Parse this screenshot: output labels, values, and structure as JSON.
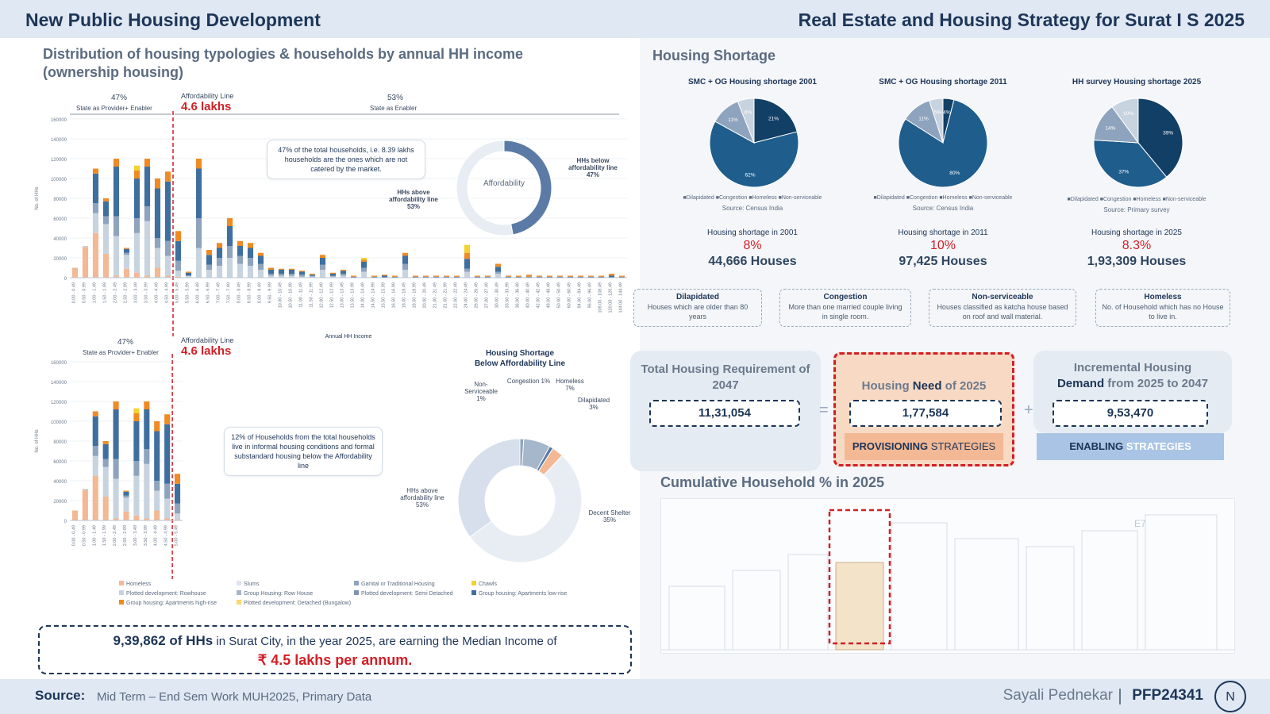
{
  "header": {
    "left_title": "New Public Housing Development",
    "right_title": "Real Estate and Housing Strategy for Surat I S 2025"
  },
  "left": {
    "title_line1": "Distribution of housing typologies & households by annual HH income",
    "title_line2": "(ownership housing)",
    "top_chart": {
      "pct_left": "47%",
      "left_caption": "State as Provider+ Enabler",
      "aff_line_label": "Affordability Line",
      "aff_line_value": "4.6 lakhs",
      "pct_right": "53%",
      "right_caption": "State as Enabler",
      "xlabel": "Annual HH Income",
      "ylabel": "No. of HHs",
      "callout": "47% of the total households, i.e. 8.39 lakhs households are the ones which are not catered by the market.",
      "donut_center": "Affordability",
      "donut_below": "HHs below affordability line 47%",
      "donut_above": "HHs above affordability line 53%"
    },
    "bottom_chart": {
      "pct_left": "47%",
      "left_caption": "State as Provider+ Enabler",
      "aff_line_label": "Affordability Line",
      "aff_line_value": "4.6 lakhs",
      "ylabel": "No. of HHs",
      "callout": "12% of Households from the total households live in informal housing conditions and formal substandard housing below the Affordability line",
      "donut_title_1": "Housing Shortage",
      "donut_title_2": "Below Affordability Line",
      "labels": {
        "congestion": "Congestion 1%",
        "homeless": "Homeless 7%",
        "nonserv": "Non-Serviceable 1%",
        "dilapidated": "Dilapidated 3%",
        "above": "HHs above affordability line 53%",
        "decent": "Decent Shelter 35%"
      }
    },
    "legend": [
      "Homeless",
      "Slums",
      "Gamtal or Traditional Housing",
      "Chawls",
      "Plotted development: Rowhouse",
      "Group Housing: Row House",
      "Plotted development: Semi Detached",
      "Group housing: Apartments low-rise",
      "Group housing: Apartments high-rise",
      "Plotted development: Detached (Bungalow)"
    ],
    "median": {
      "count": "9,39,862 of HHs",
      "text": " in Surat City, in the year 2025, are earning the Median Income of",
      "value": "₹ 4.5 lakhs per annum."
    }
  },
  "right": {
    "shortage_title": "Housing Shortage",
    "pies": [
      {
        "title": "SMC + OG Housing shortage 2001",
        "source": "Source: Census India",
        "label": "Housing shortage in 2001",
        "pct": "8%",
        "houses": "44,666 Houses"
      },
      {
        "title": "SMC + OG Housing shortage 2011",
        "source": "Source: Census India",
        "label": "Housing shortage in 2011",
        "pct": "10%",
        "houses": "97,425 Houses"
      },
      {
        "title": "HH survey Housing shortage 2025",
        "source": "Source: Primary survey",
        "label": "Housing shortage in 2025",
        "pct": "8.3%",
        "houses": "1,93,309 Houses"
      }
    ],
    "pie_legend": "■Dilapidated ■Congestion ■Homeless ■Non-serviceable",
    "definitions": [
      {
        "head": "Dilapidated",
        "text": "Houses which are older than 80 years"
      },
      {
        "head": "Congestion",
        "text": "More than one married couple living in single room."
      },
      {
        "head": "Non-serviceable",
        "text": "Houses classified as katcha house based on roof and wall material."
      },
      {
        "head": "Homeless",
        "text": "No. of Household which has no House to live in."
      }
    ],
    "equation": {
      "total_title": "Total Housing Requirement of 2047",
      "total_value": "11,31,054",
      "eq": "=",
      "need_title_a": "Housing ",
      "need_title_b": "Need",
      "need_title_c": " of 2025",
      "need_value": "1,77,584",
      "need_strategy_a": "PROVISIONING",
      "need_strategy_b": " STRATEGIES",
      "plus": "+",
      "inc_title_1": "Incremental Housing",
      "inc_title_2a": "Demand",
      "inc_title_2b": " from 2025 to 2047",
      "inc_value": "9,53,470",
      "inc_strategy_a": "ENABLING",
      "inc_strategy_b": " STRATEGIES"
    },
    "cumulative_title": "Cumulative Household % in 2025",
    "cumulative_tag": "E7"
  },
  "footer": {
    "source_label": "Source:",
    "source_text": "Mid Term – End Sem Work MUH2025, Primary Data",
    "author": "Sayali Pednekar",
    "code": "PFP24341",
    "logo": "N"
  },
  "colors": {
    "navy": "#1d3557",
    "red": "#d21f26",
    "dark_blue": "#123f66",
    "mid_blue": "#3f6f9f",
    "grey_blue": "#8ea3bd",
    "light_grey": "#c8d3e0",
    "orange": "#f08a24",
    "peach": "#f3b894",
    "yellow": "#f2d22e"
  },
  "chart_data": [
    {
      "type": "bar",
      "title": "Distribution of housing typologies & households by annual HH income (ownership housing)",
      "xlabel": "Annual HH Income",
      "ylabel": "No. of HHs",
      "ylim": [
        0,
        160000
      ],
      "yticks": [
        0,
        20000,
        40000,
        60000,
        80000,
        100000,
        120000,
        140000,
        160000
      ],
      "categories": [
        "0.00 - 0.49",
        "0.50 - 0.99",
        "1.00 - 1.49",
        "1.50 - 1.99",
        "2.00 - 2.49",
        "2.50 - 2.99",
        "3.00 - 3.49",
        "3.50 - 3.99",
        "4.00 - 4.49",
        "4.50 - 4.99",
        "5.00 - 5.49",
        "5.50 - 5.99",
        "6.00 - 6.49",
        "6.50 - 6.99",
        "7.00 - 7.49",
        "7.50 - 7.99",
        "8.00 - 8.49",
        "8.50 - 8.99",
        "9.00 - 9.49",
        "9.50 - 9.99",
        "10.00 - 10.49",
        "10.50 - 10.99",
        "11.00 - 11.49",
        "11.50 - 11.99",
        "12.00 - 12.49",
        "12.50 - 12.99",
        "13.00 - 13.49",
        "13.50 - 13.99",
        "14.00 - 14.49",
        "14.50 - 14.99",
        "15.50 - 15.99",
        "16.50 - 16.99",
        "18.00 - 18.49",
        "18.50 - 18.99",
        "20.00 - 20.49",
        "21.00 - 21.49",
        "21.50 - 21.99",
        "22.00 - 22.49",
        "24.00 - 24.49",
        "26.00 - 26.49",
        "27.00 - 27.49",
        "30.00 - 30.49",
        "33.50 - 33.99",
        "36.00 - 36.49",
        "40.00 - 40.49",
        "42.00 - 42.49",
        "48.00 - 48.49",
        "50.00 - 50.49",
        "60.00 - 60.49",
        "84.00 - 84.49",
        "96.00 - 96.49",
        "108.00 - 108.49",
        "120.00 - 120.49",
        "144.00 - 144.49"
      ],
      "series": [
        {
          "name": "Homeless",
          "values": [
            10000,
            31000,
            45000,
            24000,
            2000,
            9000,
            5000,
            2000,
            10000,
            2000,
            1000,
            0,
            0,
            0,
            0,
            0,
            0,
            0,
            0,
            0,
            0,
            0,
            0,
            0,
            0,
            0,
            0,
            0,
            0,
            0,
            0,
            0,
            0,
            0,
            0,
            0,
            0,
            0,
            0,
            0,
            0,
            0,
            0,
            0,
            0,
            0,
            0,
            0,
            0,
            0,
            0,
            0,
            0,
            0
          ]
        },
        {
          "name": "Slums",
          "values": [
            0,
            1000,
            20000,
            30000,
            40000,
            14000,
            40000,
            55000,
            20000,
            20000,
            6000,
            2000,
            30000,
            8000,
            12000,
            20000,
            14000,
            12000,
            8000,
            2000,
            2000,
            2000,
            1000,
            1000,
            8000,
            1000,
            2000,
            0,
            6000,
            0,
            0,
            0,
            8000,
            0,
            0,
            0,
            0,
            0,
            6000,
            0,
            0,
            4000,
            0,
            0,
            0,
            0,
            0,
            0,
            0,
            0,
            0,
            0,
            0,
            0
          ]
        },
        {
          "name": "Gamtal or Traditional Housing",
          "values": [
            0,
            0,
            10000,
            8000,
            20000,
            2000,
            15000,
            15000,
            10000,
            15000,
            10000,
            0,
            30000,
            5000,
            8000,
            12000,
            8000,
            8000,
            6000,
            2000,
            2000,
            2000,
            2000,
            1000,
            5000,
            1000,
            2000,
            0,
            4000,
            0,
            0,
            0,
            6000,
            0,
            0,
            0,
            0,
            0,
            3000,
            0,
            0,
            2000,
            0,
            0,
            0,
            0,
            0,
            0,
            0,
            0,
            0,
            0,
            0,
            0
          ]
        },
        {
          "name": "Group housing: Apartments low-rise",
          "values": [
            0,
            0,
            30000,
            15000,
            50000,
            4000,
            40000,
            40000,
            50000,
            60000,
            20000,
            3000,
            50000,
            10000,
            10000,
            20000,
            10000,
            10000,
            8000,
            4000,
            4000,
            4000,
            3000,
            1000,
            7000,
            2000,
            3000,
            1000,
            6000,
            1000,
            2000,
            1000,
            8000,
            1000,
            1000,
            1000,
            1000,
            1000,
            10000,
            1000,
            1000,
            5000,
            1000,
            1000,
            1000,
            1000,
            1000,
            1000,
            1000,
            1000,
            1000,
            1000,
            2000,
            1000
          ]
        },
        {
          "name": "Group housing: Apartments high-rise",
          "values": [
            0,
            0,
            5000,
            3000,
            8000,
            1000,
            8000,
            8000,
            10000,
            10000,
            10000,
            1000,
            10000,
            5000,
            5000,
            8000,
            5000,
            5000,
            3000,
            2000,
            1000,
            1000,
            1000,
            1000,
            3000,
            1000,
            1000,
            1000,
            2000,
            1000,
            1000,
            1000,
            3000,
            1000,
            1000,
            1000,
            1000,
            1000,
            6000,
            1000,
            1000,
            3000,
            1000,
            1000,
            2000,
            1000,
            1000,
            1000,
            1000,
            1000,
            1000,
            1000,
            2000,
            1000
          ]
        },
        {
          "name": "Plotted development: Detached (Bungalow)",
          "values": [
            0,
            0,
            0,
            0,
            0,
            0,
            5000,
            0,
            0,
            0,
            0,
            0,
            0,
            0,
            0,
            0,
            0,
            0,
            0,
            0,
            0,
            0,
            0,
            0,
            0,
            0,
            0,
            0,
            2000,
            0,
            0,
            0,
            0,
            0,
            0,
            0,
            0,
            0,
            8000,
            0,
            0,
            0,
            0,
            0,
            0,
            0,
            0,
            0,
            0,
            0,
            0,
            0,
            0,
            0
          ]
        }
      ]
    },
    {
      "type": "pie",
      "title": "Affordability",
      "labels": [
        "HHs below affordability line",
        "HHs above affordability line"
      ],
      "values": [
        47,
        53
      ]
    },
    {
      "type": "pie",
      "title": "Housing Shortage Below Affordability Line",
      "labels": [
        "Congestion",
        "Homeless",
        "Non-Serviceable",
        "Dilapidated",
        "HHs above affordability line",
        "Decent Shelter"
      ],
      "values": [
        1,
        7,
        1,
        3,
        53,
        35
      ]
    },
    {
      "type": "pie",
      "title": "SMC + OG Housing shortage 2001",
      "labels": [
        "Dilapidated",
        "Congestion",
        "Homeless",
        "Non-serviceable"
      ],
      "values": [
        21,
        62,
        11,
        6
      ]
    },
    {
      "type": "pie",
      "title": "SMC + OG Housing shortage 2011",
      "labels": [
        "Dilapidated",
        "Congestion",
        "Homeless",
        "Non-serviceable"
      ],
      "values": [
        4,
        80,
        11,
        5
      ]
    },
    {
      "type": "pie",
      "title": "HH survey Housing shortage 2025",
      "labels": [
        "Dilapidated",
        "Congestion",
        "Homeless",
        "Non-serviceable"
      ],
      "values": [
        39,
        37,
        14,
        10
      ]
    }
  ]
}
